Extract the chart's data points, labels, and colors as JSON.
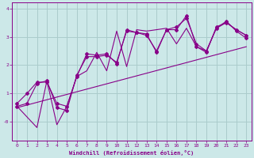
{
  "xlabel": "Windchill (Refroidissement éolien,°C)",
  "bg_color": "#cce8e8",
  "line_color": "#880088",
  "grid_color": "#aacccc",
  "x_ticks": [
    0,
    1,
    2,
    3,
    4,
    5,
    6,
    7,
    8,
    9,
    10,
    11,
    12,
    13,
    14,
    15,
    16,
    17,
    18,
    19,
    20,
    21,
    22,
    23
  ],
  "y_ticks": [
    0,
    1,
    2,
    3,
    4
  ],
  "y_tick_labels": [
    "-0",
    "1",
    "2",
    "3",
    "4"
  ],
  "ylim": [
    -0.65,
    4.2
  ],
  "xlim": [
    -0.5,
    23.5
  ],
  "series1_x": [
    0,
    1,
    2,
    3,
    4,
    5,
    6,
    7,
    8,
    9,
    10,
    11,
    12,
    13,
    14,
    15,
    16,
    17,
    18,
    19,
    20,
    21,
    22,
    23
  ],
  "series1_y": [
    0.65,
    1.0,
    1.4,
    1.4,
    0.65,
    0.55,
    1.6,
    2.4,
    2.35,
    2.4,
    2.05,
    3.25,
    3.15,
    3.1,
    2.45,
    3.25,
    3.25,
    3.75,
    2.65,
    2.45,
    3.35,
    3.5,
    3.25,
    3.05
  ],
  "series2_x": [
    0,
    1,
    2,
    3,
    4,
    5,
    6,
    7,
    8,
    9,
    10,
    11,
    12,
    13,
    14,
    15,
    16,
    17,
    18,
    19,
    20,
    21,
    22,
    23
  ],
  "series2_y": [
    0.55,
    0.65,
    1.35,
    1.45,
    0.5,
    0.4,
    1.65,
    2.3,
    2.3,
    2.35,
    2.1,
    3.2,
    3.15,
    3.05,
    2.5,
    3.25,
    3.35,
    3.65,
    2.75,
    2.5,
    3.3,
    3.55,
    3.2,
    2.95
  ],
  "series3_x": [
    0,
    2,
    3,
    4,
    5,
    6,
    7,
    8,
    9,
    10,
    11,
    12,
    13,
    14,
    15,
    16,
    17,
    18,
    19,
    20,
    21,
    22,
    23
  ],
  "series3_y": [
    0.55,
    -0.2,
    1.45,
    -0.1,
    0.55,
    1.6,
    1.8,
    2.45,
    1.8,
    3.2,
    1.95,
    3.25,
    3.2,
    3.25,
    3.3,
    2.75,
    3.3,
    2.65,
    2.5,
    3.3,
    3.5,
    3.25,
    3.05
  ],
  "trend_x": [
    0,
    23
  ],
  "trend_y": [
    0.5,
    2.65
  ]
}
